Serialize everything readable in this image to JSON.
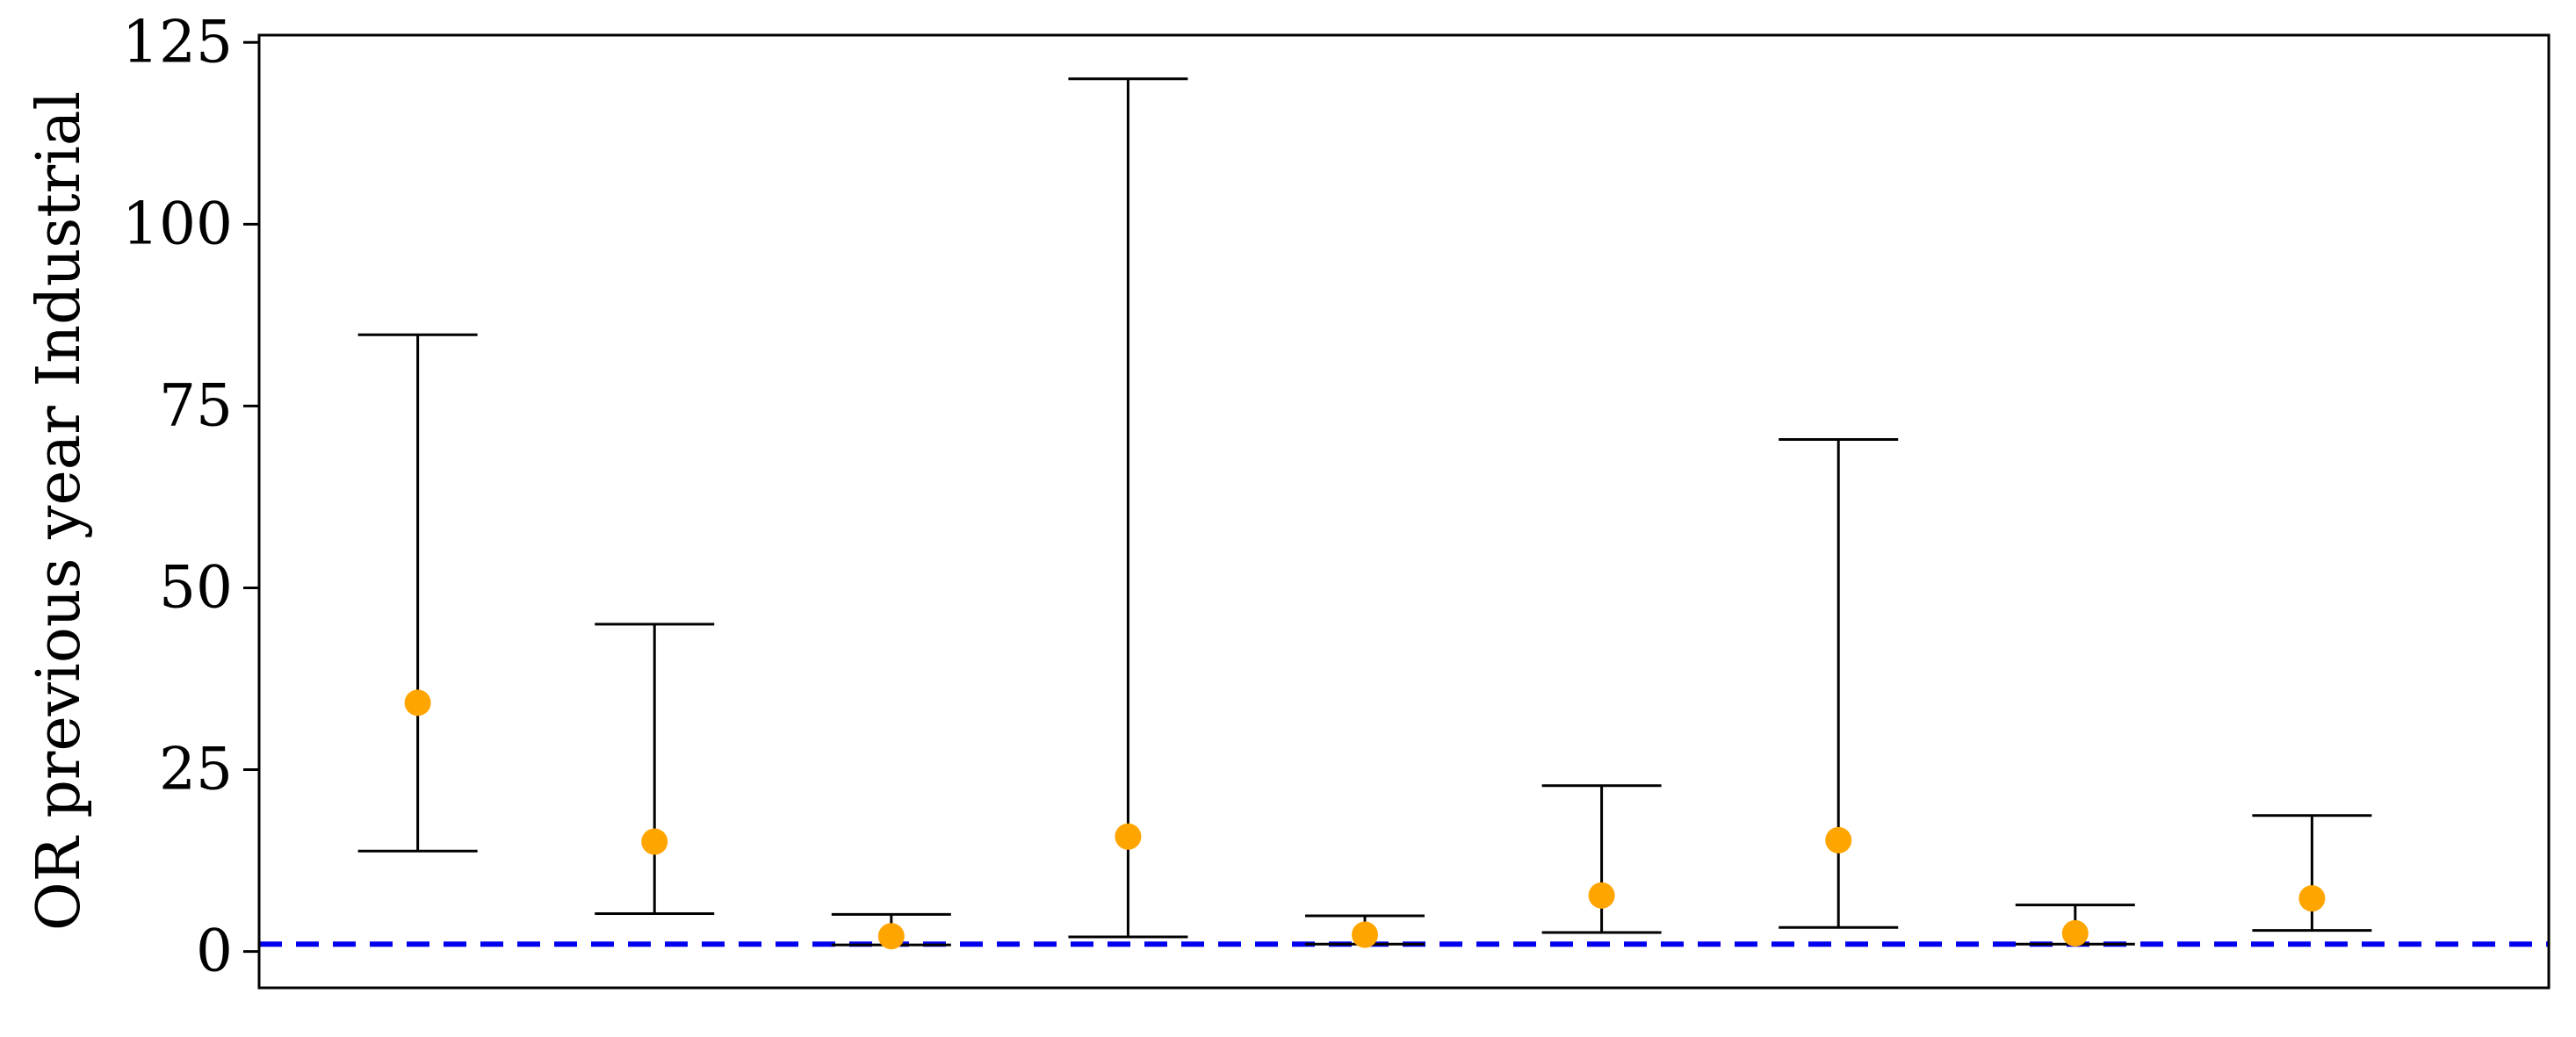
{
  "chart_data": {
    "type": "scatter",
    "title": "",
    "xlabel": "",
    "ylabel": "OR previous year Industrial",
    "ylim": [
      -5,
      126
    ],
    "yticks": [
      0,
      25,
      50,
      75,
      100,
      125
    ],
    "ytick_labels": [
      "0",
      "25",
      "50",
      "75",
      "100",
      "125"
    ],
    "x": [
      1,
      2,
      3,
      4,
      5,
      6,
      7,
      8,
      9
    ],
    "xlim": [
      0.33,
      10.0
    ],
    "values": [
      34.2,
      15.1,
      2.1,
      15.8,
      2.3,
      7.7,
      15.3,
      2.5,
      7.3
    ],
    "ci_lower": [
      13.8,
      5.2,
      0.9,
      2.0,
      1.0,
      2.6,
      3.3,
      1.0,
      2.9
    ],
    "ci_upper": [
      84.8,
      45.0,
      5.1,
      120.0,
      4.9,
      22.8,
      70.4,
      6.4,
      18.7
    ],
    "reference_line": 1,
    "grid": false,
    "colors": {
      "point": "#FFA500",
      "errorbar": "#000000",
      "reference": "#0000EE",
      "frame": "#000000"
    }
  }
}
